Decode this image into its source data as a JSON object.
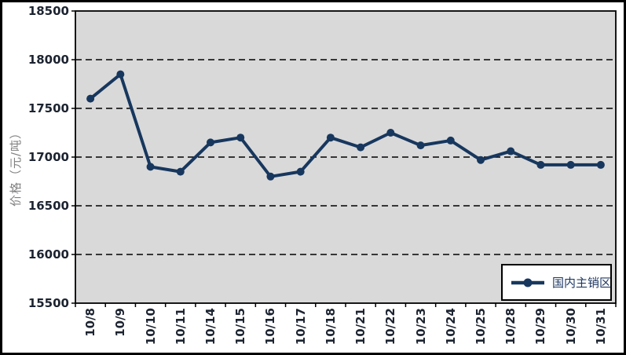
{
  "chart_data": {
    "type": "line",
    "title": "",
    "xlabel": "",
    "ylabel": "价格（元/吨）",
    "categories": [
      "10/8",
      "10/9",
      "10/10",
      "10/11",
      "10/14",
      "10/15",
      "10/16",
      "10/17",
      "10/18",
      "10/21",
      "10/22",
      "10/23",
      "10/24",
      "10/25",
      "10/28",
      "10/29",
      "10/30",
      "10/31"
    ],
    "series": [
      {
        "name": "国内主销区",
        "values": [
          17600,
          17850,
          16900,
          16850,
          17150,
          17200,
          16800,
          16850,
          17200,
          17100,
          17250,
          17120,
          17170,
          16970,
          17060,
          16920,
          16920,
          16920
        ]
      }
    ],
    "ylim": [
      15500,
      18500
    ],
    "ytick_step": 500,
    "yticks": [
      18500,
      18000,
      17500,
      17000,
      16500,
      16000,
      15500
    ],
    "grid": "horizontal-dashed",
    "legend_position": "bottom-right-inside",
    "marker": "circle",
    "colors": {
      "line": "#17375E",
      "plot_bg": "#D9D9D9",
      "figure_bg": "#FFFFFF",
      "grid": "#000000",
      "border": "#000000",
      "axis_text": "#1C2330",
      "y_title": "#808080",
      "legend_text": "#1F3864"
    }
  }
}
